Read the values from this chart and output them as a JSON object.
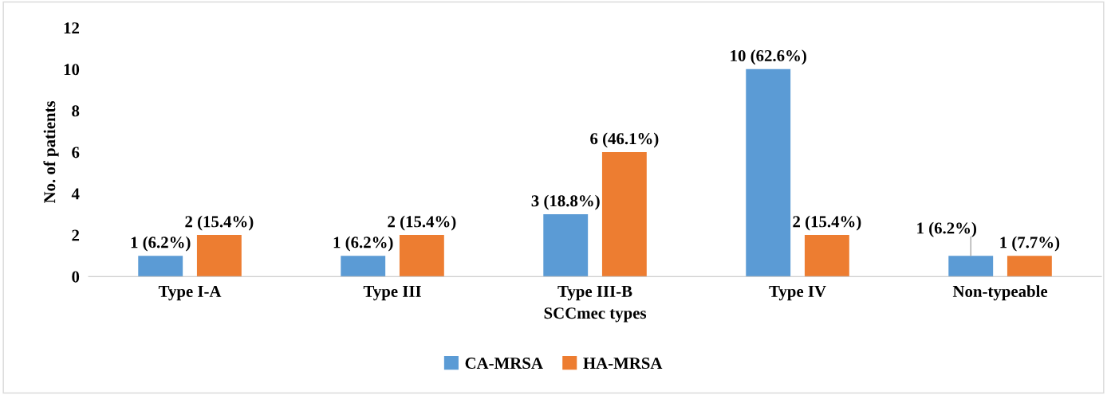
{
  "chart_data": {
    "type": "bar",
    "xlabel": "SCCmec types",
    "ylabel": "No. of patients",
    "categories": [
      "Type I-A",
      "Type III",
      "Type III-B",
      "Type IV",
      "Non-typeable"
    ],
    "series": [
      {
        "name": "CA-MRSA",
        "color": "#5b9bd5",
        "values": [
          1,
          1,
          3,
          10,
          1
        ],
        "value_labels": [
          "1 (6.2%)",
          "1 (6.2%)",
          "3 (18.8%)",
          "10 (62.6%)",
          "1 (6.2%)"
        ]
      },
      {
        "name": "HA-MRSA",
        "color": "#ed7d31",
        "values": [
          2,
          2,
          6,
          2,
          1
        ],
        "value_labels": [
          "2 (15.4%)",
          "2 (15.4%)",
          "6 (46.1%)",
          "2 (15.4%)",
          "1 (7.7%)"
        ]
      }
    ],
    "ylim": [
      0,
      12
    ],
    "yticks": [
      0,
      2,
      4,
      6,
      8,
      10,
      12
    ],
    "grid": false,
    "legend": "bottom"
  }
}
